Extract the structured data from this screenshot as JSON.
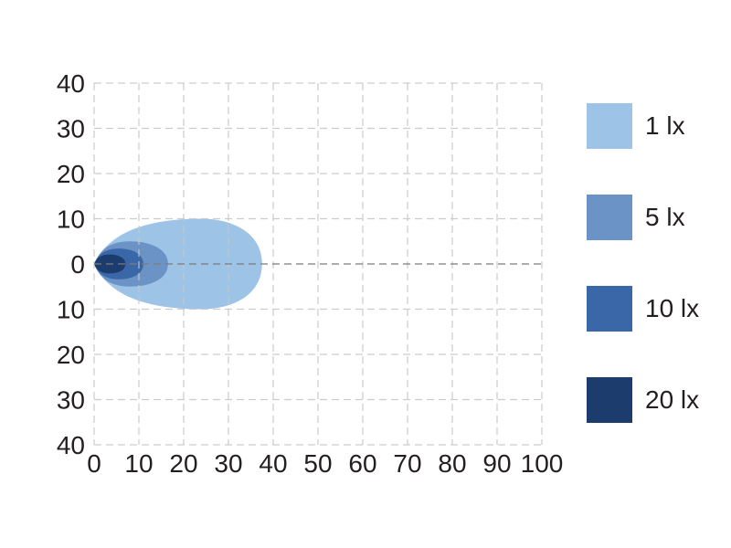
{
  "figure": {
    "background_color": "#ffffff",
    "text_color": "#231f20"
  },
  "chart_data": {
    "type": "area",
    "subtype": "isolux-beam-pattern-contour",
    "title": "",
    "xlabel": "",
    "ylabel": "",
    "xlim": [
      0,
      100
    ],
    "ylim": [
      -40,
      40
    ],
    "x_ticks": {
      "values": [
        0,
        10,
        20,
        30,
        40,
        50,
        60,
        70,
        80,
        90,
        100
      ],
      "labels": [
        "0",
        "10",
        "20",
        "30",
        "40",
        "50",
        "60",
        "70",
        "80",
        "90",
        "100"
      ]
    },
    "y_ticks": {
      "values": [
        40,
        30,
        20,
        10,
        0,
        -10,
        -20,
        -30,
        -40
      ],
      "labels": [
        "40",
        "30",
        "20",
        "10",
        "0",
        "10",
        "20",
        "30",
        "40"
      ]
    },
    "grid": {
      "on": true,
      "style": "dashed",
      "line_color": "#c7c7c7",
      "zero_line_color": "#7c7c7c"
    },
    "series": [
      {
        "name": "1 lx",
        "color": "#9dc3e6",
        "reach": 37.5,
        "max_half_width": 10,
        "widest_at": 24
      },
      {
        "name": "5 lx",
        "color": "#6c93c6",
        "reach": 16.5,
        "max_half_width": 5,
        "widest_at": 8
      },
      {
        "name": "10 lx",
        "color": "#3a67a8",
        "reach": 11,
        "max_half_width": 3.4,
        "widest_at": 5.5
      },
      {
        "name": "20 lx",
        "color": "#1b3c6d",
        "reach": 7,
        "max_half_width": 2.1,
        "widest_at": 3.5
      }
    ],
    "legend": {
      "position": "right",
      "entries": [
        {
          "label": "1 lx",
          "color": "#9dc3e6"
        },
        {
          "label": "5 lx",
          "color": "#6c93c6"
        },
        {
          "label": "10 lx",
          "color": "#3a67a8"
        },
        {
          "label": "20 lx",
          "color": "#1b3c6d"
        }
      ]
    }
  }
}
